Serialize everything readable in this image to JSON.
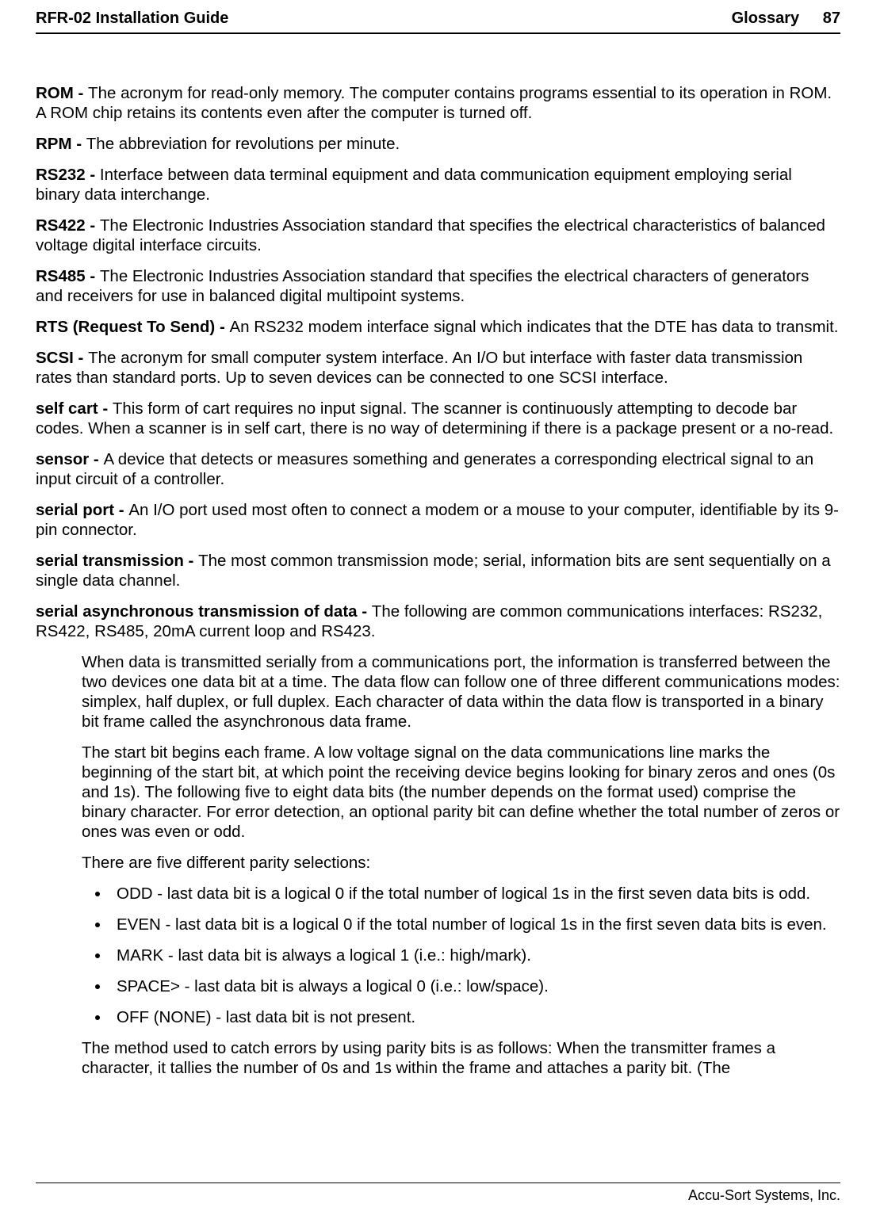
{
  "header": {
    "left": "RFR-02 Installation Guide",
    "right_label": "Glossary",
    "page_number": "87"
  },
  "entries": {
    "rom": {
      "term": "ROM - ",
      "def": "The acronym for read-only memory. The computer contains programs essential to its operation in ROM. A ROM chip retains its contents even after the computer is turned off."
    },
    "rpm": {
      "term": "RPM - ",
      "def": "The abbreviation for revolutions per minute."
    },
    "rs232": {
      "term": "RS232 - ",
      "def": "Interface between data terminal equipment and data communication equipment employing serial binary data interchange."
    },
    "rs422": {
      "term": "RS422 - ",
      "def": "The Electronic Industries Association standard that specifies the electrical characteristics of balanced voltage digital interface circuits."
    },
    "rs485": {
      "term": "RS485 - ",
      "def": "The Electronic Industries Association standard that specifies the electrical characters of generators and receivers for use in balanced digital multipoint systems."
    },
    "rts": {
      "term": "RTS (Request To Send) - ",
      "def": "An RS232 modem interface signal which indicates that the DTE has data to transmit."
    },
    "scsi": {
      "term": "SCSI - ",
      "def": "The acronym for small computer system interface. An I/O but interface with faster data transmission rates than standard ports. Up to seven devices can be connected to one SCSI interface."
    },
    "selfcart": {
      "term": "self cart - ",
      "def": "This form of cart requires no input signal. The scanner is continuously attempting to decode bar codes. When a scanner is in self cart, there is no way of determining if there is a package present or a no-read."
    },
    "sensor": {
      "term": "sensor - ",
      "def": "A device that detects or measures something and generates a corresponding electrical signal to an input circuit of a controller."
    },
    "serialport": {
      "term": "serial port - ",
      "def": "An I/O port used most often to connect a modem or a mouse to your computer, identifiable by its 9-pin connector."
    },
    "serialtrans": {
      "term": "serial transmission - ",
      "def": "The most common transmission mode; serial, information bits are sent sequentially on a single data channel."
    },
    "serialasync": {
      "term": "serial asynchronous transmission of data - ",
      "def": "The following are common communications interfaces: RS232, RS422, RS485, 20mA current loop and RS423."
    }
  },
  "indented": {
    "p1": "When data is transmitted serially from a communications port, the information is transferred between the two devices one data bit at a time. The data flow can follow one of three different communications modes: simplex, half duplex, or full duplex. Each character of data within the data flow is transported in a binary bit frame called the asynchronous data frame.",
    "p2": "The start bit begins each frame. A low voltage signal on the data communications line marks the beginning of the start bit, at which point the receiving device begins looking for binary zeros and ones (0s and 1s). The following five to eight data bits (the number depends on the format used) comprise the binary character. For error detection, an optional parity bit can define whether the total number of zeros or ones was even or odd.",
    "p3": "There are five different parity selections:",
    "p4": "The method used to catch errors by using parity bits is as follows: When the transmitter frames a character, it tallies the number of 0s and 1s within the frame and attaches a parity bit. (The"
  },
  "parity": {
    "odd": "ODD - last data bit is a logical 0 if the total number of logical 1s in the first seven data bits is odd.",
    "even": "EVEN - last data bit is a logical 0 if the total number of logical 1s in the first seven data bits is even.",
    "mark": "MARK - last data bit is always a logical 1 (i.e.: high/mark).",
    "space": "SPACE> - last data bit is always a logical 0 (i.e.: low/space).",
    "off": "OFF (NONE) - last data bit is not present."
  },
  "footer": {
    "company": "Accu-Sort Systems, Inc."
  }
}
